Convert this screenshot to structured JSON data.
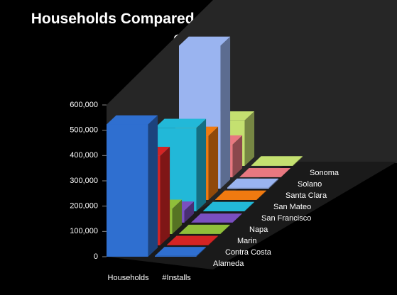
{
  "chart_data": {
    "type": "bar3d",
    "title": "Households Compared to Solar Installations by County",
    "categories": [
      "Households",
      "#Installs"
    ],
    "series": [
      {
        "name": "Alameda",
        "color": "#2f6fd0",
        "values": [
          523000,
          3000
        ]
      },
      {
        "name": "Contra Costa",
        "color": "#d42424",
        "values": [
          354000,
          2000
        ]
      },
      {
        "name": "Marin",
        "color": "#8fbf3a",
        "values": [
          100000,
          1000
        ]
      },
      {
        "name": "Napa",
        "color": "#7a4fc0",
        "values": [
          48000,
          200
        ]
      },
      {
        "name": "San Francisco",
        "color": "#22b8d8",
        "values": [
          330000,
          1500
        ]
      },
      {
        "name": "San Mateo",
        "color": "#f07a10",
        "values": [
          254000,
          1500
        ]
      },
      {
        "name": "Santa Clara",
        "color": "#9ab4f0",
        "values": [
          565000,
          4000
        ]
      },
      {
        "name": "Solano",
        "color": "#e87880",
        "values": [
          130000,
          500
        ]
      },
      {
        "name": "Sonoma",
        "color": "#c4e070",
        "values": [
          180000,
          2500
        ]
      }
    ],
    "ylim": [
      0,
      600000
    ],
    "yticks": [
      0,
      {
        "value": 100000,
        "label": "100,000"
      },
      {
        "value": 200000,
        "label": "200,000"
      },
      {
        "value": 300000,
        "label": "300,000"
      },
      {
        "value": 400000,
        "label": "400,000"
      },
      {
        "value": 500000,
        "label": "500,000"
      },
      {
        "value": 600000,
        "label": "600,000"
      }
    ]
  }
}
